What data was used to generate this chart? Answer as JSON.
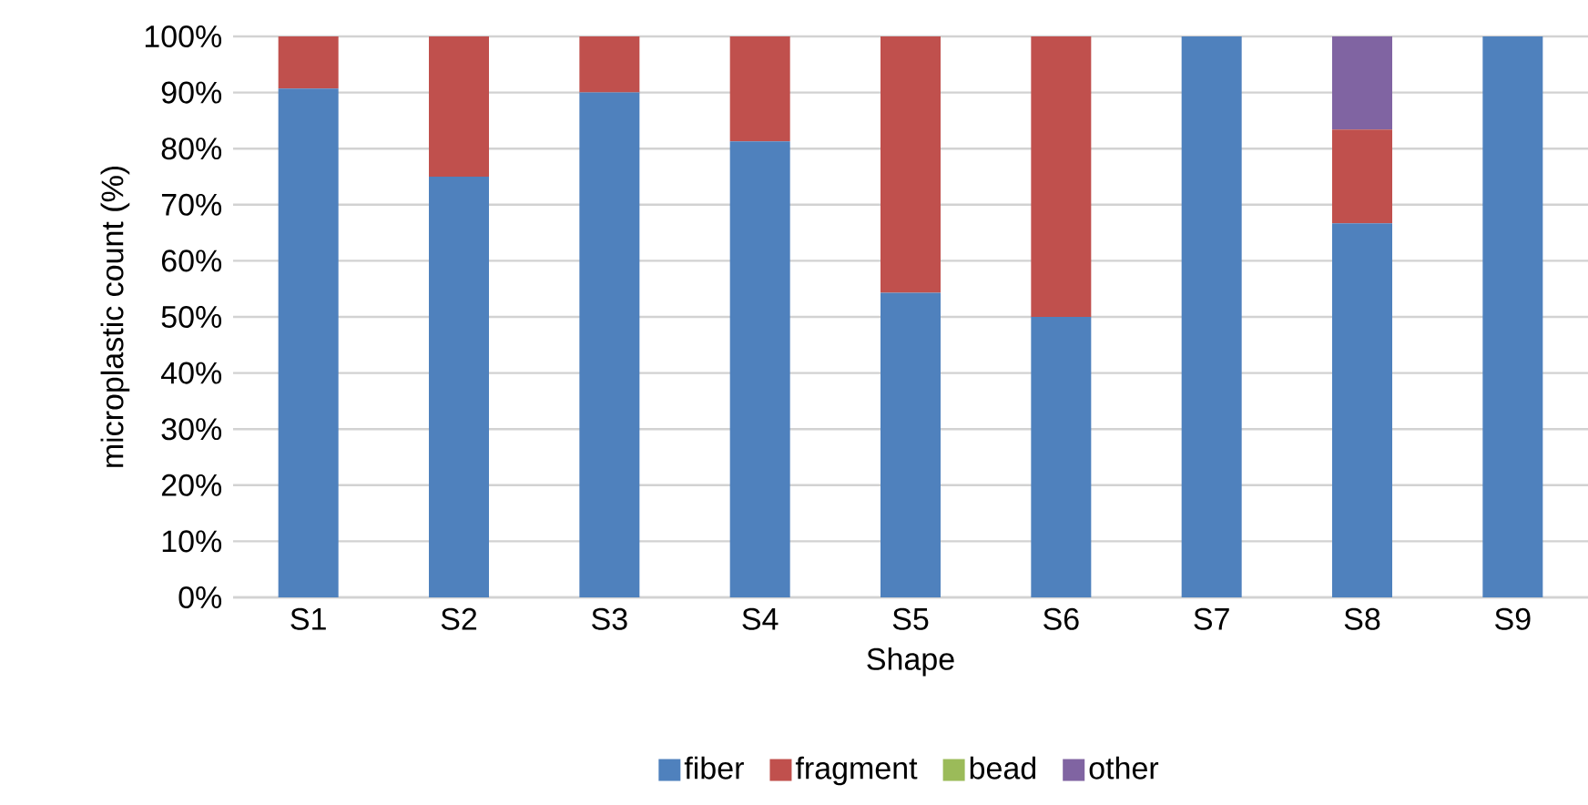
{
  "chart_data": {
    "type": "bar",
    "stacked": true,
    "xlabel": "Shape",
    "ylabel": "microplastic count (%)",
    "categories": [
      "S1",
      "S2",
      "S3",
      "S4",
      "S5",
      "S6",
      "S7",
      "S8",
      "S9"
    ],
    "series": [
      {
        "name": "fiber",
        "color": "#4f81bd",
        "values": [
          90.7,
          75,
          90,
          81.3,
          54.3,
          50,
          100,
          66.7,
          100
        ]
      },
      {
        "name": "fragment",
        "color": "#c0504d",
        "values": [
          9.3,
          25,
          10,
          18.7,
          45.7,
          50,
          0,
          16.7,
          0
        ]
      },
      {
        "name": "bead",
        "color": "#9bbb59",
        "values": [
          0,
          0,
          0,
          0,
          0,
          0,
          0,
          0,
          0
        ]
      },
      {
        "name": "other",
        "color": "#8064a2",
        "values": [
          0,
          0,
          0,
          0,
          0,
          0,
          0,
          16.6,
          0
        ]
      }
    ],
    "ylim": [
      0,
      100
    ],
    "yticks": [
      {
        "value": 0,
        "label": "0%"
      },
      {
        "value": 10,
        "label": "10%"
      },
      {
        "value": 20,
        "label": "20%"
      },
      {
        "value": 30,
        "label": "30%"
      },
      {
        "value": 40,
        "label": "40%"
      },
      {
        "value": 50,
        "label": "50%"
      },
      {
        "value": 60,
        "label": "60%"
      },
      {
        "value": 70,
        "label": "70%"
      },
      {
        "value": 80,
        "label": "80%"
      },
      {
        "value": 90,
        "label": "90%"
      },
      {
        "value": 100,
        "label": "100%"
      }
    ],
    "grid": "y",
    "legend": "bottom"
  }
}
